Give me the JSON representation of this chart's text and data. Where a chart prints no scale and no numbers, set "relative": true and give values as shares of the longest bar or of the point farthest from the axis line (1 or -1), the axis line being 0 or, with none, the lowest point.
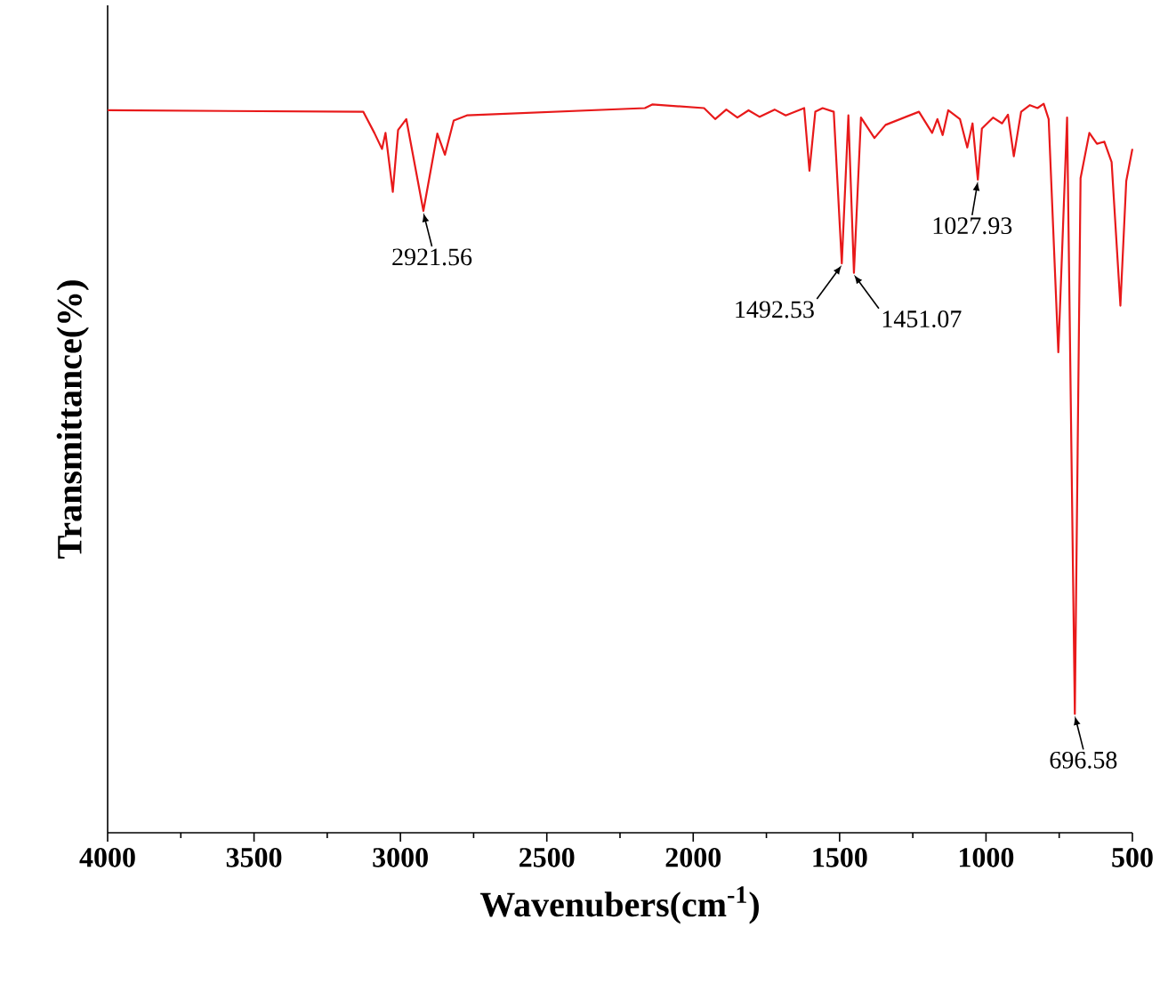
{
  "chart_data": {
    "type": "line",
    "relative": true,
    "xlabel": "Wavenubers(cm$^{-1}$)",
    "ylabel": "Transmittance(%)",
    "x": [
      4000,
      3127,
      3089,
      3063,
      3051,
      3026,
      3008,
      2980,
      2921.56,
      2874,
      2848,
      2818,
      2773,
      2165,
      2140,
      1963,
      1925,
      1887,
      1849,
      1811,
      1773,
      1722,
      1684,
      1621,
      1603,
      1583,
      1558,
      1520,
      1492.53,
      1470,
      1451.07,
      1427,
      1381,
      1343,
      1229,
      1184,
      1166,
      1148,
      1129,
      1089,
      1064,
      1046,
      1027.93,
      1014,
      976,
      945,
      925,
      905,
      880,
      850,
      824,
      803,
      786,
      753,
      723,
      696.58,
      677,
      647,
      621,
      596,
      571,
      541,
      521,
      500
    ],
    "series": [
      {
        "color": "#e8191a",
        "values": [
          0.991,
          0.989,
          0.96,
          0.938,
          0.96,
          0.879,
          0.964,
          0.979,
          0.853,
          0.959,
          0.93,
          0.977,
          0.984,
          0.994,
          0.999,
          0.994,
          0.979,
          0.992,
          0.981,
          0.991,
          0.982,
          0.992,
          0.984,
          0.994,
          0.908,
          0.989,
          0.994,
          0.989,
          0.781,
          0.984,
          0.768,
          0.981,
          0.953,
          0.971,
          0.989,
          0.96,
          0.979,
          0.957,
          0.991,
          0.979,
          0.94,
          0.973,
          0.896,
          0.966,
          0.981,
          0.973,
          0.985,
          0.928,
          0.989,
          0.998,
          0.994,
          1.0,
          0.979,
          0.659,
          0.981,
          0.163,
          0.898,
          0.96,
          0.945,
          0.948,
          0.92,
          0.723,
          0.894,
          0.938
        ]
      }
    ],
    "xlim": [
      4000,
      500
    ],
    "xticks": [
      4000,
      3500,
      3000,
      2500,
      2000,
      1500,
      1000,
      500
    ],
    "annotations": [
      {
        "text": "2921.56",
        "x": 2921.56,
        "y": 0.853
      },
      {
        "text": "1492.53",
        "x": 1492.53,
        "y": 0.781
      },
      {
        "text": "1451.07",
        "x": 1451.07,
        "y": 0.768
      },
      {
        "text": "1027.93",
        "x": 1027.93,
        "y": 0.896
      },
      {
        "text": "696.58",
        "x": 696.58,
        "y": 0.163
      }
    ],
    "grid": false,
    "marker": "none",
    "line_style": "solid"
  }
}
